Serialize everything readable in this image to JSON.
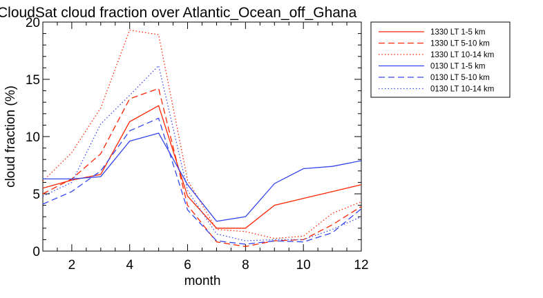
{
  "chart_data": {
    "type": "line",
    "title": "CloudSat cloud fraction over Atlantic_Ocean_off_Ghana",
    "xlabel": "month",
    "ylabel": "cloud fraction (%)",
    "xlim": [
      1,
      12
    ],
    "ylim": [
      0,
      20
    ],
    "xticks": [
      2,
      4,
      6,
      8,
      10,
      12
    ],
    "yticks": [
      0,
      5,
      10,
      15,
      20
    ],
    "grid": false,
    "legend_position": "right-outside-top",
    "x": [
      1,
      2,
      3,
      4,
      5,
      6,
      7,
      8,
      9,
      10,
      11,
      12
    ],
    "series": [
      {
        "name": "1330 LT 1-5 km",
        "color": "#ff2200",
        "dash": "solid",
        "values": [
          5.5,
          6.2,
          6.7,
          11.3,
          12.7,
          4.8,
          2.0,
          2.0,
          4.0,
          4.6,
          5.2,
          5.8
        ]
      },
      {
        "name": "1330 LT 5-10 km",
        "color": "#ff2200",
        "dash": "dashed",
        "values": [
          5.0,
          6.3,
          8.5,
          13.3,
          14.2,
          4.0,
          0.8,
          0.4,
          0.9,
          1.0,
          2.3,
          3.9
        ]
      },
      {
        "name": "1330 LT 10-14 km",
        "color": "#ff2200",
        "dash": "dotted",
        "values": [
          6.1,
          8.6,
          12.5,
          19.3,
          18.9,
          6.2,
          1.9,
          1.7,
          1.1,
          1.3,
          3.3,
          4.3
        ]
      },
      {
        "name": "0130 LT 1-5 km",
        "color": "#3344ee",
        "dash": "solid",
        "values": [
          6.3,
          6.3,
          6.5,
          9.6,
          10.3,
          5.8,
          2.6,
          3.0,
          5.9,
          7.2,
          7.4,
          7.9
        ]
      },
      {
        "name": "0130 LT 5-10 km",
        "color": "#3344ee",
        "dash": "dashed",
        "values": [
          4.1,
          5.2,
          7.0,
          10.5,
          11.6,
          3.6,
          0.9,
          0.6,
          0.9,
          0.8,
          1.6,
          3.7
        ]
      },
      {
        "name": "0130 LT 10-14 km",
        "color": "#3344ee",
        "dash": "dotted",
        "values": [
          4.8,
          6.0,
          11.1,
          13.6,
          16.2,
          5.3,
          1.5,
          0.9,
          1.0,
          1.0,
          1.9,
          3.0
        ]
      }
    ]
  }
}
